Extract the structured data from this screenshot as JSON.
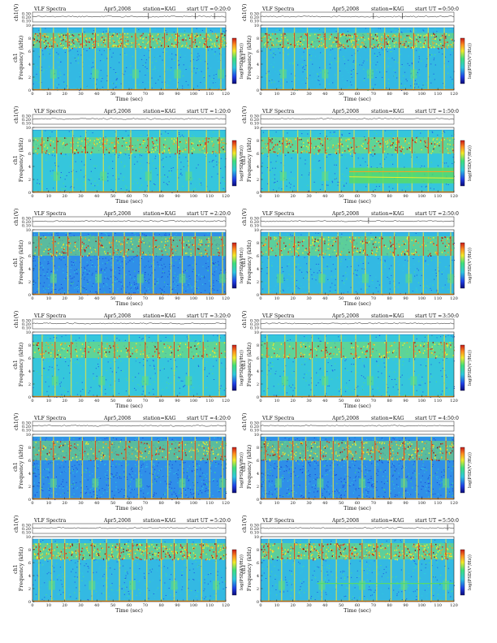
{
  "page": {
    "layout": "6 rows x 2 columns of VLF spectrogram panels"
  },
  "common": {
    "title_left": "VLF Spectra",
    "date": "Apr5,2008",
    "station": "station=KAG",
    "start_label": "start  UT =",
    "top_ylabel": "ch1(V)",
    "ylabel": "Frequency  (kHz)",
    "ylabel_prefix": "ch1",
    "xlabel": "Time  (sec)",
    "colorbar_label": "log(PSD(V²/Hz))"
  },
  "colors": {
    "bg_blue": "#1f5fe6",
    "field_cyan": "#2ec8e0",
    "green": "#3ee07a",
    "yellow": "#f2ea2a",
    "orange": "#ff9d1f",
    "red": "#d8261c",
    "dark_red": "#8a0f0f",
    "orange_baseline": "#ff8c00"
  },
  "chart_data": [
    {
      "type": "heatmap",
      "title": "VLF Spectra",
      "start_ut": "0:20:0",
      "xlabel": "Time  (sec)",
      "ylabel": "Frequency  (kHz)",
      "xlim": [
        0,
        120
      ],
      "ylim": [
        0,
        10
      ],
      "x_ticks": [
        0,
        10,
        20,
        30,
        40,
        50,
        60,
        70,
        80,
        90,
        100,
        110,
        120
      ],
      "y_ticks": [
        0,
        2,
        4,
        6,
        8,
        10
      ],
      "top_ylim": [
        0.1,
        0.3
      ],
      "top_ticks": [
        "0.30",
        "0.20",
        "0.10"
      ],
      "cutoff_khz": 9.6,
      "band_khz": [
        6.5,
        8.8
      ],
      "band_intensity": 1.0,
      "background_level": "medium",
      "event_times": [
        5,
        13,
        22,
        31,
        39,
        47,
        56,
        64,
        73,
        82,
        90,
        99,
        108,
        117
      ],
      "spikes_ch1": [
        72,
        101,
        113
      ]
    },
    {
      "type": "heatmap",
      "title": "VLF Spectra",
      "start_ut": "0:50:0",
      "xlabel": "Time  (sec)",
      "ylabel": "Frequency  (kHz)",
      "xlim": [
        0,
        120
      ],
      "ylim": [
        0,
        10
      ],
      "x_ticks": [
        0,
        10,
        20,
        30,
        40,
        50,
        60,
        70,
        80,
        90,
        100,
        110,
        120
      ],
      "y_ticks": [
        0,
        2,
        4,
        6,
        8,
        10
      ],
      "top_ylim": [
        0.1,
        0.3
      ],
      "top_ticks": [
        "0.30",
        "0.20",
        "0.10"
      ],
      "cutoff_khz": 9.6,
      "band_khz": [
        6.5,
        8.8
      ],
      "band_intensity": 0.85,
      "background_level": "medium",
      "event_times": [
        4,
        14,
        21,
        29,
        40,
        48,
        59,
        68,
        77,
        86,
        95,
        104,
        114
      ],
      "spikes_ch1": [
        70,
        88
      ]
    },
    {
      "type": "heatmap",
      "title": "VLF Spectra",
      "start_ut": "1:20:0",
      "xlabel": "Time  (sec)",
      "ylabel": "Frequency  (kHz)",
      "xlim": [
        0,
        120
      ],
      "ylim": [
        0,
        10
      ],
      "x_ticks": [
        0,
        10,
        20,
        30,
        40,
        50,
        60,
        70,
        80,
        90,
        100,
        110,
        120
      ],
      "y_ticks": [
        0,
        2,
        4,
        6,
        8,
        10
      ],
      "top_ylim": [
        0.1,
        0.3
      ],
      "top_ticks": [
        "0.30",
        "0.20",
        "0.10"
      ],
      "cutoff_khz": 9.6,
      "band_khz": [
        6.0,
        8.5
      ],
      "band_intensity": 0.6,
      "background_level": "quiet",
      "event_times": [
        6,
        15,
        25,
        33,
        44,
        52,
        61,
        72,
        79,
        90,
        97,
        108,
        116
      ],
      "spikes_ch1": []
    },
    {
      "type": "heatmap",
      "title": "VLF Spectra",
      "start_ut": "1:50:0",
      "xlabel": "Time  (sec)",
      "ylabel": "Frequency  (kHz)",
      "xlim": [
        0,
        120
      ],
      "ylim": [
        0,
        10
      ],
      "x_ticks": [
        0,
        10,
        20,
        30,
        40,
        50,
        60,
        70,
        80,
        90,
        100,
        110,
        120
      ],
      "y_ticks": [
        0,
        2,
        4,
        6,
        8,
        10
      ],
      "top_ylim": [
        0.1,
        0.3
      ],
      "top_ticks": [
        "0.30",
        "0.20",
        "0.10"
      ],
      "cutoff_khz": 9.6,
      "band_khz": [
        6.0,
        8.5
      ],
      "band_intensity": 0.65,
      "background_level": "quiet",
      "event_times": [
        5,
        14,
        23,
        31,
        40,
        49,
        58,
        67,
        76,
        85,
        94,
        104,
        113
      ],
      "spikes_ch1": [],
      "interference_block": {
        "t0": 55,
        "t1": 120,
        "f_khz": [
          1.4,
          3.8
        ]
      }
    },
    {
      "type": "heatmap",
      "title": "VLF Spectra",
      "start_ut": "2:20:0",
      "xlabel": "Time  (sec)",
      "ylabel": "Frequency  (kHz)",
      "xlim": [
        0,
        120
      ],
      "ylim": [
        0,
        10
      ],
      "x_ticks": [
        0,
        10,
        20,
        30,
        40,
        50,
        60,
        70,
        80,
        90,
        100,
        110,
        120
      ],
      "y_ticks": [
        0,
        2,
        4,
        6,
        8,
        10
      ],
      "top_ylim": [
        0.1,
        0.3
      ],
      "top_ticks": [
        "0.30",
        "0.20",
        "0.10"
      ],
      "cutoff_khz": 9.6,
      "band_khz": [
        6.0,
        9.0
      ],
      "band_intensity": 0.6,
      "background_level": "dark",
      "event_times": [
        4,
        13,
        22,
        30,
        41,
        50,
        57,
        67,
        75,
        86,
        93,
        101,
        111,
        118
      ],
      "spikes_ch1": []
    },
    {
      "type": "heatmap",
      "title": "VLF Spectra",
      "start_ut": "2:50:0",
      "xlabel": "Time  (sec)",
      "ylabel": "Frequency  (kHz)",
      "xlim": [
        0,
        120
      ],
      "ylim": [
        0,
        10
      ],
      "x_ticks": [
        0,
        10,
        20,
        30,
        40,
        50,
        60,
        70,
        80,
        90,
        100,
        110,
        120
      ],
      "y_ticks": [
        0,
        2,
        4,
        6,
        8,
        10
      ],
      "top_ylim": [
        0.1,
        0.3
      ],
      "top_ticks": [
        "0.30",
        "0.20",
        "0.10"
      ],
      "cutoff_khz": 9.6,
      "band_khz": [
        6.0,
        9.0
      ],
      "band_intensity": 0.7,
      "background_level": "medium",
      "event_times": [
        5,
        12,
        21,
        30,
        38,
        48,
        57,
        65,
        75,
        83,
        92,
        101,
        110,
        118
      ],
      "spikes_ch1": [
        67
      ]
    },
    {
      "type": "heatmap",
      "title": "VLF Spectra",
      "start_ut": "3:20:0",
      "xlabel": "Time  (sec)",
      "ylabel": "Frequency  (kHz)",
      "xlim": [
        0,
        120
      ],
      "ylim": [
        0,
        10
      ],
      "x_ticks": [
        0,
        10,
        20,
        30,
        40,
        50,
        60,
        70,
        80,
        90,
        100,
        110,
        120
      ],
      "y_ticks": [
        0,
        2,
        4,
        6,
        8,
        10
      ],
      "top_ylim": [
        0.1,
        0.3
      ],
      "top_ticks": [
        "0.30",
        "0.20",
        "0.10"
      ],
      "cutoff_khz": 9.6,
      "band_khz": [
        6.0,
        8.5
      ],
      "band_intensity": 0.45,
      "background_level": "quiet",
      "event_times": [
        6,
        14,
        24,
        33,
        43,
        51,
        60,
        70,
        78,
        88,
        97,
        106,
        116
      ],
      "spikes_ch1": []
    },
    {
      "type": "heatmap",
      "title": "VLF Spectra",
      "start_ut": "3:50:0",
      "xlabel": "Time  (sec)",
      "ylabel": "Frequency  (kHz)",
      "xlim": [
        0,
        120
      ],
      "ylim": [
        0,
        10
      ],
      "x_ticks": [
        0,
        10,
        20,
        30,
        40,
        50,
        60,
        70,
        80,
        90,
        100,
        110,
        120
      ],
      "y_ticks": [
        0,
        2,
        4,
        6,
        8,
        10
      ],
      "top_ylim": [
        0.1,
        0.3
      ],
      "top_ticks": [
        "0.30",
        "0.20",
        "0.10"
      ],
      "cutoff_khz": 9.6,
      "band_khz": [
        6.0,
        8.5
      ],
      "band_intensity": 0.45,
      "background_level": "quiet",
      "event_times": [
        4,
        15,
        22,
        32,
        40,
        50,
        59,
        68,
        78,
        86,
        95,
        104,
        114
      ],
      "spikes_ch1": []
    },
    {
      "type": "heatmap",
      "title": "VLF Spectra",
      "start_ut": "4:20:0",
      "xlabel": "Time  (sec)",
      "ylabel": "Frequency  (kHz)",
      "xlim": [
        0,
        120
      ],
      "ylim": [
        0,
        10
      ],
      "x_ticks": [
        0,
        10,
        20,
        30,
        40,
        50,
        60,
        70,
        80,
        90,
        100,
        110,
        120
      ],
      "y_ticks": [
        0,
        2,
        4,
        6,
        8,
        10
      ],
      "top_ylim": [
        0.1,
        0.3
      ],
      "top_ticks": [
        "0.30",
        "0.20",
        "0.10"
      ],
      "cutoff_khz": 9.6,
      "band_khz": [
        6.0,
        9.0
      ],
      "band_intensity": 0.55,
      "background_level": "dark",
      "event_times": [
        5,
        13,
        23,
        31,
        39,
        48,
        58,
        66,
        74,
        84,
        93,
        101,
        110,
        118
      ],
      "spikes_ch1": []
    },
    {
      "type": "heatmap",
      "title": "VLF Spectra",
      "start_ut": "4:50:0",
      "xlabel": "Time  (sec)",
      "ylabel": "Frequency  (kHz)",
      "xlim": [
        0,
        120
      ],
      "ylim": [
        0,
        10
      ],
      "x_ticks": [
        0,
        10,
        20,
        30,
        40,
        50,
        60,
        70,
        80,
        90,
        100,
        110,
        120
      ],
      "y_ticks": [
        0,
        2,
        4,
        6,
        8,
        10
      ],
      "top_ylim": [
        0.1,
        0.3
      ],
      "top_ticks": [
        "0.30",
        "0.20",
        "0.10"
      ],
      "cutoff_khz": 9.6,
      "band_khz": [
        6.0,
        9.0
      ],
      "band_intensity": 0.8,
      "background_level": "dark",
      "event_times": [
        3,
        11,
        20,
        28,
        37,
        45,
        54,
        63,
        71,
        80,
        89,
        97,
        106,
        115
      ],
      "spikes_ch1": []
    },
    {
      "type": "heatmap",
      "title": "VLF Spectra",
      "start_ut": "5:20:0",
      "xlabel": "Time  (sec)",
      "ylabel": "Frequency  (kHz)",
      "xlim": [
        0,
        120
      ],
      "ylim": [
        0,
        10
      ],
      "x_ticks": [
        0,
        10,
        20,
        30,
        40,
        50,
        60,
        70,
        80,
        90,
        100,
        110,
        120
      ],
      "y_ticks": [
        0,
        2,
        4,
        6,
        8,
        10
      ],
      "top_ylim": [
        0.1,
        0.3
      ],
      "top_ticks": [
        "0.30",
        "0.20",
        "0.10"
      ],
      "cutoff_khz": 9.6,
      "band_khz": [
        6.5,
        9.0
      ],
      "band_intensity": 0.95,
      "background_level": "medium",
      "event_times": [
        4,
        12,
        20,
        29,
        37,
        46,
        54,
        62,
        71,
        80,
        88,
        96,
        105,
        114
      ],
      "spikes_ch1": []
    },
    {
      "type": "heatmap",
      "title": "VLF Spectra",
      "start_ut": "5:50:0",
      "xlabel": "Time  (sec)",
      "ylabel": "Frequency  (kHz)",
      "xlim": [
        0,
        120
      ],
      "ylim": [
        0,
        10
      ],
      "x_ticks": [
        0,
        10,
        20,
        30,
        40,
        50,
        60,
        70,
        80,
        90,
        100,
        110,
        120
      ],
      "y_ticks": [
        0,
        2,
        4,
        6,
        8,
        10
      ],
      "top_ylim": [
        0.1,
        0.3
      ],
      "top_ticks": [
        "0.30",
        "0.20",
        "0.10"
      ],
      "cutoff_khz": 9.6,
      "band_khz": [
        6.5,
        9.0
      ],
      "band_intensity": 0.95,
      "background_level": "medium",
      "event_times": [
        5,
        13,
        21,
        30,
        38,
        47,
        55,
        63,
        72,
        81,
        89,
        98,
        106,
        115
      ],
      "spikes_ch1": [
        116
      ],
      "interference_line": {
        "t0": 35,
        "t1": 120,
        "f_khz": 2.8
      }
    }
  ]
}
